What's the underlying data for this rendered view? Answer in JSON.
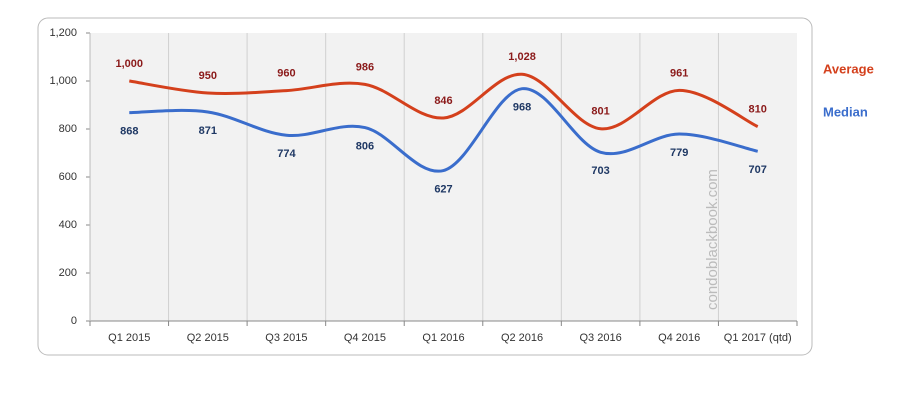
{
  "chart_data": {
    "type": "line",
    "categories": [
      "Q1 2015",
      "Q2 2015",
      "Q3 2015",
      "Q4 2015",
      "Q1 2016",
      "Q2 2016",
      "Q3 2016",
      "Q4 2016",
      "Q1 2017 (qtd)"
    ],
    "series": [
      {
        "name": "Average",
        "color": "#d4401c",
        "label_color": "#8b1a1a",
        "values": [
          1000,
          950,
          960,
          986,
          846,
          1028,
          801,
          961,
          810
        ],
        "value_labels": [
          "1,000",
          "950",
          "960",
          "986",
          "846",
          "1,028",
          "801",
          "961",
          "810"
        ]
      },
      {
        "name": "Median",
        "color": "#3a6dcc",
        "label_color": "#1f3864",
        "values": [
          868,
          871,
          774,
          806,
          627,
          968,
          703,
          779,
          707
        ]
      }
    ],
    "ylim": [
      0,
      1200
    ],
    "yticks": [
      0,
      200,
      400,
      600,
      800,
      {
        "value": 1000,
        "label": "1,000"
      },
      {
        "value": 1200,
        "label": "1,200"
      }
    ],
    "grid": true,
    "smooth": true,
    "watermark": "condoblackbook.com"
  }
}
